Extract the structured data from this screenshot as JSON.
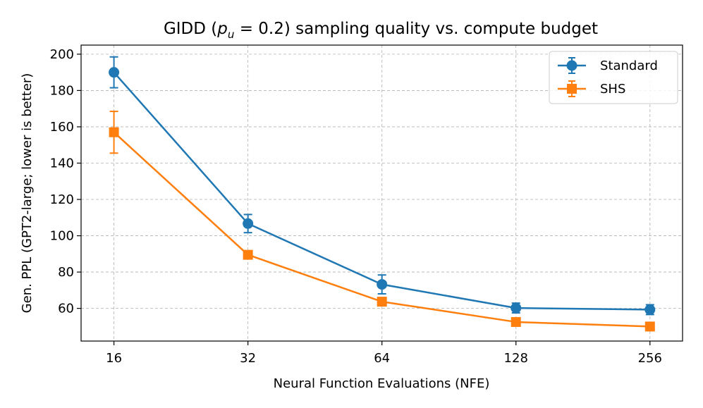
{
  "chart_data": {
    "type": "line",
    "title_prefix": "GIDD (",
    "title_symbol": "p",
    "title_subscript": "u",
    "title_suffix": " = 0.2) sampling quality vs. compute budget",
    "xlabel": "Neural Function Evaluations (NFE)",
    "ylabel": "Gen. PPL (GPT2-large; lower is better)",
    "x_scale": "log2",
    "categories": [
      "16",
      "32",
      "64",
      "128",
      "256"
    ],
    "x": [
      16,
      32,
      64,
      128,
      256
    ],
    "xlim": [
      13.5,
      303
    ],
    "ylim": [
      42,
      205
    ],
    "yticks": [
      "60",
      "80",
      "100",
      "120",
      "140",
      "160",
      "180",
      "200"
    ],
    "grid": true,
    "legend_position": "top-right",
    "series": [
      {
        "name": "Standard",
        "color": "#1f77b4",
        "marker": "circle",
        "values": [
          190.0,
          106.7,
          73.2,
          60.2,
          59.3
        ],
        "errors": [
          8.5,
          5.0,
          5.2,
          2.7,
          2.7
        ]
      },
      {
        "name": "SHS",
        "color": "#ff7f0e",
        "marker": "square",
        "values": [
          157.0,
          89.5,
          63.7,
          52.5,
          50.0
        ],
        "errors": [
          11.5,
          0.0,
          0.0,
          0.0,
          0.0
        ]
      }
    ]
  }
}
